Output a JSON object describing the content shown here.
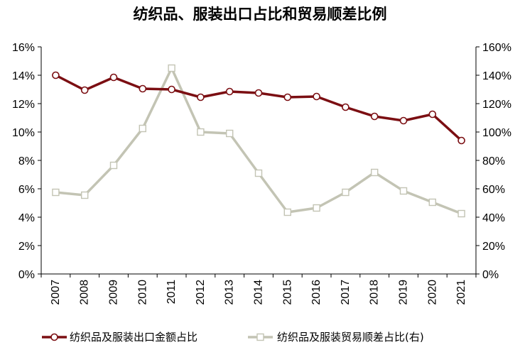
{
  "chart_data": {
    "type": "line",
    "title": "纺织品、服装出口占比和贸易顺差比例",
    "categories": [
      "2007",
      "2008",
      "2009",
      "2010",
      "2011",
      "2012",
      "2013",
      "2014",
      "2015",
      "2016",
      "2017",
      "2018",
      "2019",
      "2020",
      "2021"
    ],
    "series": [
      {
        "name": "纺织品及服装出口金额占比",
        "axis": "left",
        "color": "#7b0e12",
        "marker": "circle",
        "values": [
          14.0,
          12.95,
          13.85,
          13.05,
          13.0,
          12.45,
          12.85,
          12.75,
          12.45,
          12.5,
          11.75,
          11.1,
          10.8,
          11.25,
          9.4
        ]
      },
      {
        "name": "纺织品及服装贸易顺差占比(右)",
        "axis": "right",
        "color": "#c3c4b4",
        "marker": "square",
        "values": [
          57.5,
          55.5,
          76.5,
          102.5,
          145.0,
          100.0,
          99.0,
          71.0,
          43.5,
          46.5,
          57.5,
          71.5,
          58.5,
          50.5,
          42.5
        ]
      }
    ],
    "y_left": {
      "ticks": [
        "0%",
        "2%",
        "4%",
        "6%",
        "8%",
        "10%",
        "12%",
        "14%",
        "16%"
      ],
      "ylim": [
        0,
        16
      ]
    },
    "y_right": {
      "ticks": [
        "0%",
        "20%",
        "40%",
        "60%",
        "80%",
        "100%",
        "120%",
        "140%",
        "160%"
      ],
      "ylim": [
        0,
        160
      ]
    },
    "legend_position": "bottom"
  }
}
